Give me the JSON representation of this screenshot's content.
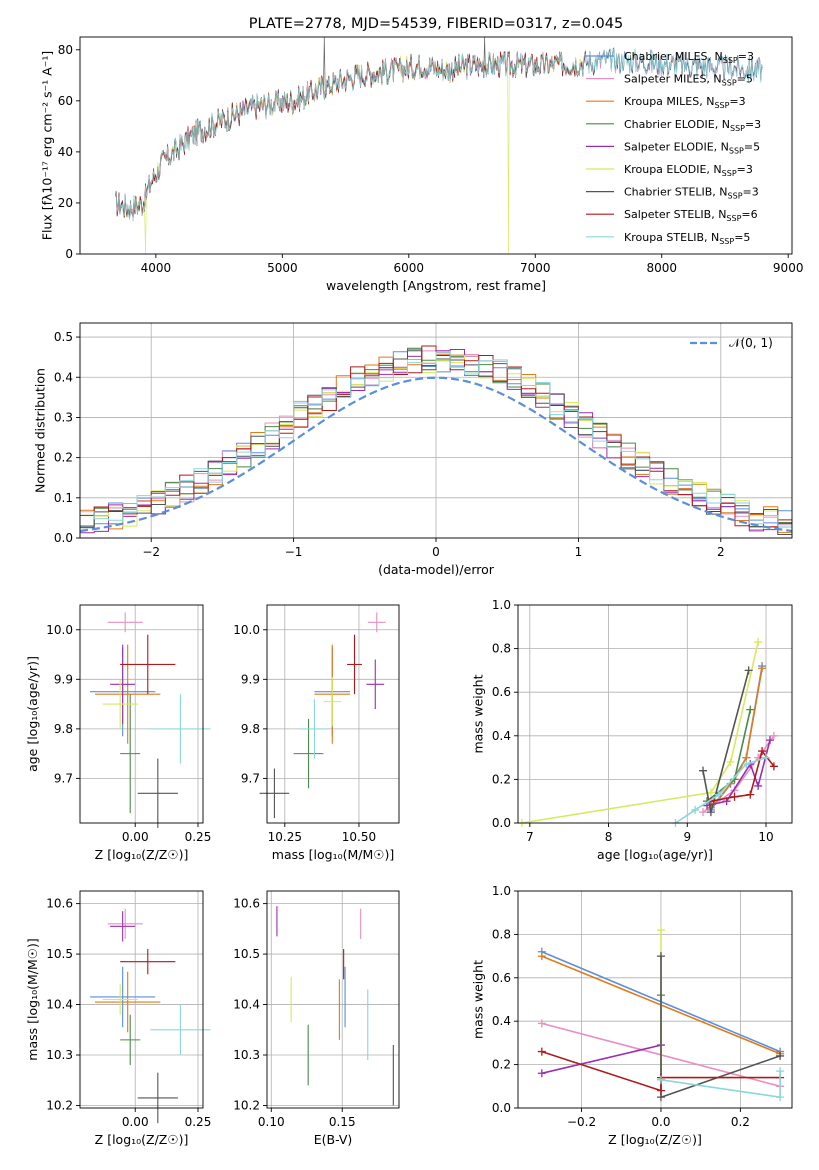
{
  "colors": {
    "c1": "#5b8fd9",
    "c2": "#e88fc3",
    "c3": "#e07a1a",
    "c4": "#4a8a4a",
    "c5": "#9a2fae",
    "c6": "#d8e860",
    "c7": "#545454",
    "c8": "#b01a1a",
    "c9": "#8ad6dc"
  },
  "chart_data": [
    {
      "id": "spectrum",
      "type": "line",
      "title": "PLATE=2778, MJD=54539, FIBERID=0317, z=0.045",
      "xlabel": "wavelength [Angstrom, rest frame]",
      "ylabel": "Flux [fλ10⁻¹⁷ erg cm⁻² s⁻¹ A⁻¹]",
      "xlim": [
        3400,
        9030
      ],
      "ylim": [
        0,
        85
      ],
      "xticks": [
        "4000",
        "5000",
        "6000",
        "7000",
        "8000",
        "9000"
      ],
      "yticks": [
        "0",
        "20",
        "40",
        "60",
        "80"
      ],
      "continuum": [
        [
          3680,
          20
        ],
        [
          3800,
          18
        ],
        [
          3900,
          20
        ],
        [
          3960,
          28
        ],
        [
          4050,
          36
        ],
        [
          4150,
          40
        ],
        [
          4300,
          47
        ],
        [
          4500,
          52
        ],
        [
          4800,
          58
        ],
        [
          5100,
          60
        ],
        [
          5300,
          65
        ],
        [
          5600,
          70
        ],
        [
          5900,
          72
        ],
        [
          6100,
          74
        ],
        [
          6300,
          72
        ],
        [
          6500,
          74
        ],
        [
          6800,
          74
        ],
        [
          7100,
          74
        ],
        [
          7400,
          75
        ],
        [
          7600,
          76
        ],
        [
          7900,
          75
        ],
        [
          8200,
          74
        ],
        [
          8500,
          73
        ],
        [
          8800,
          72
        ]
      ],
      "legend": [
        {
          "label": "Chabrier MILES, N",
          "sub": "SSP",
          "tail": "=3"
        },
        {
          "label": "Salpeter MILES, N",
          "sub": "SSP",
          "tail": "=5"
        },
        {
          "label": "Kroupa MILES, N",
          "sub": "SSP",
          "tail": "=3"
        },
        {
          "label": "Chabrier ELODIE, N",
          "sub": "SSP",
          "tail": "=3"
        },
        {
          "label": "Salpeter ELODIE, N",
          "sub": "SSP",
          "tail": "=5"
        },
        {
          "label": "Kroupa ELODIE, N",
          "sub": "SSP",
          "tail": "=3"
        },
        {
          "label": "Chabrier STELIB, N",
          "sub": "SSP",
          "tail": "=3"
        },
        {
          "label": "Salpeter STELIB, N",
          "sub": "SSP",
          "tail": "=6"
        },
        {
          "label": "Kroupa STELIB, N",
          "sub": "SSP",
          "tail": "=5"
        }
      ]
    },
    {
      "id": "residuals",
      "type": "area",
      "xlabel": "(data-model)/error",
      "ylabel": "Normed distribution",
      "xlim": [
        -2.5,
        2.5
      ],
      "ylim": [
        0,
        0.535
      ],
      "xticks": [
        "−2",
        "−1",
        "0",
        "1",
        "2"
      ],
      "yticks": [
        "0.0",
        "0.1",
        "0.2",
        "0.3",
        "0.4",
        "0.5"
      ],
      "legend": "𝒩(0, 1)",
      "bins": [
        -2.5,
        2.5,
        50
      ]
    },
    {
      "id": "age_Z",
      "type": "scatter",
      "xlabel": "Z [log₁₀(Z/Z☉)]",
      "ylabel": "age  [log₁₀(age/yr)]",
      "xlim": [
        -0.22,
        0.27
      ],
      "ylim": [
        9.61,
        10.05
      ],
      "xticks": [
        "0.00",
        "0.25"
      ],
      "yticks": [
        "9.7",
        "9.8",
        "9.9",
        "10.0"
      ],
      "points": [
        {
          "c": "c1",
          "x": -0.05,
          "xe": 0.13,
          "y": 9.875,
          "ye": 0.09
        },
        {
          "c": "c2",
          "x": -0.04,
          "xe": 0.07,
          "y": 10.015,
          "ye": 0.02
        },
        {
          "c": "c3",
          "x": -0.03,
          "xe": 0.13,
          "y": 9.87,
          "ye": 0.1
        },
        {
          "c": "c4",
          "x": -0.02,
          "xe": 0.04,
          "y": 9.75,
          "ye": 0.12
        },
        {
          "c": "c5",
          "x": -0.05,
          "xe": 0.05,
          "y": 9.89,
          "ye": 0.08
        },
        {
          "c": "c6",
          "x": -0.06,
          "xe": 0.07,
          "y": 9.85,
          "ye": 0.05
        },
        {
          "c": "c7",
          "x": 0.09,
          "xe": 0.08,
          "y": 9.67,
          "ye": 0.07
        },
        {
          "c": "c8",
          "x": 0.05,
          "xe": 0.11,
          "y": 9.93,
          "ye": 0.06
        },
        {
          "c": "c9",
          "x": 0.18,
          "xe": 0.12,
          "y": 9.8,
          "ye": 0.07
        }
      ]
    },
    {
      "id": "age_mass",
      "type": "scatter",
      "xlabel": "mass [log₁₀(M/M☉)]",
      "ylabel": "",
      "xlim": [
        10.19,
        10.635
      ],
      "ylim": [
        9.61,
        10.05
      ],
      "xticks": [
        "10.25",
        "10.50"
      ],
      "yticks": [
        "9.7",
        "9.8",
        "9.9",
        "10.0"
      ],
      "points": [
        {
          "c": "c1",
          "x": 10.41,
          "xe": 0.06,
          "y": 9.875,
          "ye": 0.09
        },
        {
          "c": "c2",
          "x": 10.56,
          "xe": 0.03,
          "y": 10.015,
          "ye": 0.02
        },
        {
          "c": "c3",
          "x": 10.41,
          "xe": 0.06,
          "y": 9.87,
          "ye": 0.1
        },
        {
          "c": "c4",
          "x": 10.33,
          "xe": 0.05,
          "y": 9.75,
          "ye": 0.07
        },
        {
          "c": "c5",
          "x": 10.555,
          "xe": 0.03,
          "y": 9.89,
          "ye": 0.05
        },
        {
          "c": "c6",
          "x": 10.41,
          "xe": 0.03,
          "y": 9.855,
          "ye": 0.05
        },
        {
          "c": "c7",
          "x": 10.215,
          "xe": 0.05,
          "y": 9.67,
          "ye": 0.05
        },
        {
          "c": "c8",
          "x": 10.485,
          "xe": 0.025,
          "y": 9.93,
          "ye": 0.06
        },
        {
          "c": "c9",
          "x": 10.35,
          "xe": 0.05,
          "y": 9.8,
          "ye": 0.06
        }
      ]
    },
    {
      "id": "weight_age",
      "type": "line",
      "xlabel": "age  [log₁₀(age/yr)]",
      "ylabel": "mass weight",
      "xlim": [
        6.85,
        10.33
      ],
      "ylim": [
        0,
        1.0
      ],
      "xticks": [
        "7",
        "8",
        "9",
        "10"
      ],
      "yticks": [
        "0.0",
        "0.2",
        "0.4",
        "0.6",
        "0.8",
        "1.0"
      ],
      "series": [
        {
          "c": "c1",
          "pts": [
            [
              9.3,
              0.06
            ],
            [
              9.55,
              0.18
            ],
            [
              9.75,
              0.3
            ],
            [
              9.95,
              0.72
            ]
          ]
        },
        {
          "c": "c2",
          "pts": [
            [
              9.2,
              0.05
            ],
            [
              9.6,
              0.15
            ],
            [
              9.9,
              0.3
            ],
            [
              10.1,
              0.4
            ]
          ]
        },
        {
          "c": "c3",
          "pts": [
            [
              9.3,
              0.07
            ],
            [
              9.6,
              0.2
            ],
            [
              9.75,
              0.3
            ],
            [
              9.95,
              0.71
            ]
          ]
        },
        {
          "c": "c4",
          "pts": [
            [
              9.25,
              0.1
            ],
            [
              9.6,
              0.2
            ],
            [
              9.8,
              0.52
            ]
          ]
        },
        {
          "c": "c5",
          "pts": [
            [
              9.25,
              0.08
            ],
            [
              9.5,
              0.1
            ],
            [
              9.8,
              0.27
            ],
            [
              9.9,
              0.17
            ],
            [
              10.05,
              0.38
            ]
          ]
        },
        {
          "c": "c6",
          "pts": [
            [
              6.9,
              0.0
            ],
            [
              9.3,
              0.14
            ],
            [
              9.55,
              0.28
            ],
            [
              9.9,
              0.83
            ]
          ]
        },
        {
          "c": "c7",
          "pts": [
            [
              9.2,
              0.24
            ],
            [
              9.3,
              0.05
            ],
            [
              9.78,
              0.7
            ]
          ]
        },
        {
          "c": "c8",
          "pts": [
            [
              9.3,
              0.1
            ],
            [
              9.6,
              0.12
            ],
            [
              9.8,
              0.13
            ],
            [
              9.95,
              0.33
            ],
            [
              10.1,
              0.26
            ]
          ]
        },
        {
          "c": "c9",
          "pts": [
            [
              8.85,
              0.0
            ],
            [
              9.1,
              0.06
            ],
            [
              9.4,
              0.13
            ],
            [
              9.75,
              0.27
            ],
            [
              10.0,
              0.3
            ]
          ]
        }
      ]
    },
    {
      "id": "mass_Z",
      "type": "scatter",
      "xlabel": "Z [log₁₀(Z/Z☉)]",
      "ylabel": "mass [log₁₀(M/M☉)]",
      "xlim": [
        -0.22,
        0.27
      ],
      "ylim": [
        10.195,
        10.625
      ],
      "xticks": [
        "0.00",
        "0.25"
      ],
      "yticks": [
        "10.2",
        "10.3",
        "10.4",
        "10.5",
        "10.6"
      ],
      "points": [
        {
          "c": "c1",
          "x": -0.05,
          "xe": 0.13,
          "y": 10.415,
          "ye": 0.06
        },
        {
          "c": "c2",
          "x": -0.04,
          "xe": 0.07,
          "y": 10.56,
          "ye": 0.03
        },
        {
          "c": "c3",
          "x": -0.03,
          "xe": 0.13,
          "y": 10.405,
          "ye": 0.06
        },
        {
          "c": "c4",
          "x": -0.02,
          "xe": 0.04,
          "y": 10.33,
          "ye": 0.05
        },
        {
          "c": "c5",
          "x": -0.05,
          "xe": 0.05,
          "y": 10.555,
          "ye": 0.03
        },
        {
          "c": "c6",
          "x": -0.06,
          "xe": 0.07,
          "y": 10.41,
          "ye": 0.03
        },
        {
          "c": "c7",
          "x": 0.09,
          "xe": 0.08,
          "y": 10.215,
          "ye": 0.05
        },
        {
          "c": "c8",
          "x": 0.05,
          "xe": 0.11,
          "y": 10.485,
          "ye": 0.025
        },
        {
          "c": "c9",
          "x": 0.18,
          "xe": 0.12,
          "y": 10.35,
          "ye": 0.05
        }
      ]
    },
    {
      "id": "mass_ebv",
      "type": "scatter",
      "xlabel": "E(B-V)",
      "ylabel": "",
      "xlim": [
        0.097,
        0.19
      ],
      "ylim": [
        10.195,
        10.625
      ],
      "xticks": [
        "0.10",
        "0.15"
      ],
      "yticks": [
        "10.2",
        "10.3",
        "10.4",
        "10.5",
        "10.6"
      ],
      "points": [
        {
          "c": "c1",
          "x": 0.152,
          "xe": 0,
          "y": 10.415,
          "ye": 0.06
        },
        {
          "c": "c2",
          "x": 0.163,
          "xe": 0,
          "y": 10.56,
          "ye": 0.03
        },
        {
          "c": "c3",
          "x": 0.148,
          "xe": 0,
          "y": 10.39,
          "ye": 0.06
        },
        {
          "c": "c4",
          "x": 0.126,
          "xe": 0,
          "y": 10.3,
          "ye": 0.06
        },
        {
          "c": "c5",
          "x": 0.104,
          "xe": 0,
          "y": 10.565,
          "ye": 0.03
        },
        {
          "c": "c6",
          "x": 0.114,
          "xe": 0,
          "y": 10.41,
          "ye": 0.045
        },
        {
          "c": "c7",
          "x": 0.186,
          "xe": 0,
          "y": 10.26,
          "ye": 0.06
        },
        {
          "c": "c8",
          "x": 0.151,
          "xe": 0,
          "y": 10.48,
          "ye": 0.03
        },
        {
          "c": "c9",
          "x": 0.168,
          "xe": 0,
          "y": 10.36,
          "ye": 0.07
        }
      ]
    },
    {
      "id": "weight_Z",
      "type": "line",
      "xlabel": "Z [log₁₀(Z/Z☉)]",
      "ylabel": "mass weight",
      "xlim": [
        -0.36,
        0.33
      ],
      "ylim": [
        0,
        1.0
      ],
      "xticks": [
        "−0.2",
        "0.0",
        "0.2"
      ],
      "yticks": [
        "0.0",
        "0.2",
        "0.4",
        "0.6",
        "0.8",
        "1.0"
      ],
      "series": [
        {
          "c": "c1",
          "pts": [
            [
              -0.3,
              0.72
            ],
            [
              0.3,
              0.26
            ]
          ]
        },
        {
          "c": "c2",
          "pts": [
            [
              -0.3,
              0.39
            ],
            [
              0.3,
              0.1
            ]
          ]
        },
        {
          "c": "c3",
          "pts": [
            [
              -0.3,
              0.7
            ],
            [
              0.3,
              0.25
            ]
          ]
        },
        {
          "c": "c4",
          "pts": [
            [
              0.0,
              0.52
            ],
            [
              0.0,
              0.13
            ]
          ]
        },
        {
          "c": "c5",
          "pts": [
            [
              -0.3,
              0.16
            ],
            [
              0.0,
              0.29
            ]
          ]
        },
        {
          "c": "c6",
          "pts": [
            [
              0.0,
              0.82
            ],
            [
              0.0,
              0.14
            ]
          ]
        },
        {
          "c": "c7",
          "pts": [
            [
              0.0,
              0.7
            ],
            [
              0.0,
              0.05
            ],
            [
              0.3,
              0.24
            ]
          ]
        },
        {
          "c": "c8",
          "pts": [
            [
              -0.3,
              0.26
            ],
            [
              0.0,
              0.08
            ],
            [
              0.0,
              0.14
            ],
            [
              0.3,
              0.14
            ]
          ]
        },
        {
          "c": "c9",
          "pts": [
            [
              0.0,
              0.13
            ],
            [
              0.3,
              0.05
            ],
            [
              0.3,
              0.17
            ]
          ]
        }
      ]
    }
  ]
}
